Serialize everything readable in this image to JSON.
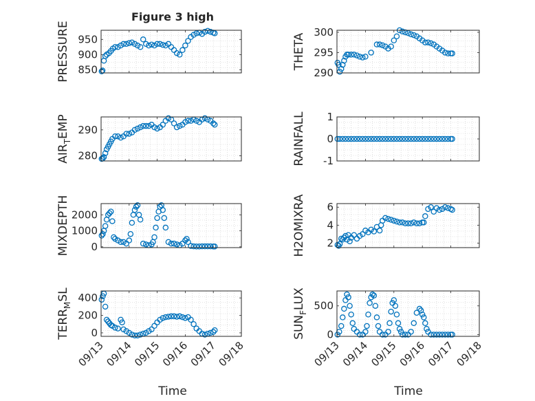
{
  "figure": {
    "title": "Figure 3 high",
    "xlabel": "Time"
  },
  "colors": {
    "marker": "#0072BD",
    "axis": "#262626",
    "grid": "#c8c8c8"
  },
  "chart_data": [
    {
      "id": "pressure",
      "type": "scatter",
      "ylabel": "PRESSURE",
      "ylim": [
        840,
        980
      ],
      "yticks": [
        850,
        900,
        950
      ],
      "grid": true,
      "xlim": [
        0,
        5
      ],
      "xticks": [
        "09/13",
        "09/14",
        "09/15",
        "09/16",
        "09/17",
        "09/18"
      ],
      "x": [
        0.02,
        0.05,
        0.1,
        0.15,
        0.2,
        0.28,
        0.35,
        0.42,
        0.5,
        0.6,
        0.7,
        0.8,
        0.9,
        1.0,
        1.1,
        1.2,
        1.3,
        1.4,
        1.5,
        1.6,
        1.7,
        1.8,
        1.9,
        2.0,
        2.1,
        2.2,
        2.3,
        2.4,
        2.5,
        2.6,
        2.7,
        2.8,
        2.9,
        3.0,
        3.1,
        3.2,
        3.3,
        3.4,
        3.5,
        3.6,
        3.7,
        3.8,
        3.9,
        4.0,
        4.05
      ],
      "y": [
        845,
        848,
        880,
        895,
        900,
        905,
        912,
        920,
        925,
        925,
        930,
        935,
        935,
        938,
        940,
        935,
        930,
        925,
        950,
        935,
        930,
        933,
        930,
        935,
        935,
        932,
        930,
        935,
        925,
        915,
        905,
        900,
        915,
        930,
        945,
        958,
        965,
        970,
        972,
        968,
        975,
        978,
        975,
        972,
        970
      ]
    },
    {
      "id": "theta",
      "type": "scatter",
      "ylabel": "THETA",
      "ylim": [
        290,
        300.5
      ],
      "yticks": [
        290,
        295,
        300
      ],
      "grid": true,
      "xlim": [
        0,
        5
      ],
      "xticks": [
        "09/13",
        "09/14",
        "09/15",
        "09/16",
        "09/17",
        "09/18"
      ],
      "x": [
        0.02,
        0.06,
        0.1,
        0.15,
        0.2,
        0.25,
        0.3,
        0.35,
        0.4,
        0.5,
        0.6,
        0.7,
        0.8,
        0.9,
        1.0,
        1.2,
        1.4,
        1.5,
        1.6,
        1.7,
        1.8,
        1.9,
        2.0,
        2.1,
        2.2,
        2.3,
        2.4,
        2.5,
        2.6,
        2.7,
        2.8,
        2.9,
        3.0,
        3.1,
        3.2,
        3.3,
        3.4,
        3.5,
        3.6,
        3.7,
        3.8,
        3.9,
        4.0,
        4.05
      ],
      "y": [
        292.5,
        292,
        290.3,
        291,
        292,
        293,
        294,
        294.5,
        294.5,
        294.5,
        294.5,
        294.3,
        294,
        293.8,
        294,
        295,
        297,
        297,
        296.8,
        296.5,
        296,
        296.5,
        298,
        299,
        300.5,
        300.2,
        300,
        299.8,
        299.5,
        299.3,
        299,
        298.5,
        298,
        297.5,
        297.5,
        297.3,
        297,
        296.5,
        296,
        295.5,
        295,
        294.8,
        294.8,
        294.8
      ]
    },
    {
      "id": "air_temp",
      "type": "scatter",
      "ylabel": "AIR_TEMP",
      "ylim": [
        278,
        295
      ],
      "yticks": [
        280,
        290
      ],
      "grid": true,
      "xlim": [
        0,
        5
      ],
      "xticks": [
        "09/13",
        "09/14",
        "09/15",
        "09/16",
        "09/17",
        "09/18"
      ],
      "x": [
        0.02,
        0.06,
        0.1,
        0.15,
        0.2,
        0.25,
        0.3,
        0.35,
        0.4,
        0.5,
        0.6,
        0.7,
        0.8,
        0.9,
        1.0,
        1.1,
        1.2,
        1.3,
        1.4,
        1.5,
        1.6,
        1.7,
        1.8,
        1.9,
        2.0,
        2.1,
        2.2,
        2.3,
        2.4,
        2.5,
        2.6,
        2.7,
        2.8,
        2.9,
        3.0,
        3.1,
        3.2,
        3.3,
        3.4,
        3.5,
        3.6,
        3.7,
        3.8,
        3.9,
        4.0,
        4.05
      ],
      "y": [
        278.8,
        279,
        279.5,
        281,
        282.5,
        283.5,
        284.5,
        285.5,
        286.5,
        287.5,
        287.5,
        287,
        287.5,
        288.5,
        288.5,
        289,
        290,
        290.5,
        291,
        291.5,
        291.5,
        291.5,
        292,
        291,
        290.5,
        291,
        292,
        293.5,
        294.5,
        294,
        292.5,
        291,
        291.5,
        292,
        293,
        293.5,
        293.5,
        294,
        293.5,
        293,
        294,
        294.5,
        294,
        293.5,
        292.5,
        292
      ]
    },
    {
      "id": "rainfall",
      "type": "scatter",
      "ylabel": "RAINFALL",
      "ylim": [
        -1,
        1
      ],
      "yticks": [
        -1,
        0,
        1
      ],
      "grid": true,
      "xlim": [
        0,
        5
      ],
      "xticks": [
        "09/13",
        "09/14",
        "09/15",
        "09/16",
        "09/17",
        "09/18"
      ],
      "x": [
        0.02,
        0.1,
        0.2,
        0.3,
        0.4,
        0.5,
        0.6,
        0.7,
        0.8,
        0.9,
        1.0,
        1.1,
        1.2,
        1.3,
        1.4,
        1.5,
        1.6,
        1.7,
        1.8,
        1.9,
        2.0,
        2.1,
        2.2,
        2.3,
        2.4,
        2.5,
        2.6,
        2.7,
        2.8,
        2.9,
        3.0,
        3.1,
        3.2,
        3.3,
        3.4,
        3.5,
        3.6,
        3.7,
        3.8,
        3.9,
        4.0,
        4.05
      ],
      "y": [
        0,
        0,
        0,
        0,
        0,
        0,
        0,
        0,
        0,
        0,
        0,
        0,
        0,
        0,
        0,
        0,
        0,
        0,
        0,
        0,
        0,
        0,
        0,
        0,
        0,
        0,
        0,
        0,
        0,
        0,
        0,
        0,
        0,
        0,
        0,
        0,
        0,
        0,
        0,
        0,
        0,
        0
      ]
    },
    {
      "id": "mixdepth",
      "type": "scatter",
      "ylabel": "MIXDEPTH",
      "ylim": [
        -50,
        2700
      ],
      "yticks": [
        0,
        1000,
        2000
      ],
      "grid": true,
      "xlim": [
        0,
        5
      ],
      "xticks": [
        "09/13",
        "09/14",
        "09/15",
        "09/16",
        "09/17",
        "09/18"
      ],
      "x": [
        0.02,
        0.06,
        0.1,
        0.15,
        0.2,
        0.25,
        0.3,
        0.35,
        0.4,
        0.45,
        0.5,
        0.6,
        0.7,
        0.8,
        0.9,
        1.0,
        1.05,
        1.1,
        1.15,
        1.2,
        1.25,
        1.3,
        1.35,
        1.4,
        1.5,
        1.6,
        1.7,
        1.8,
        1.85,
        1.9,
        1.95,
        2.0,
        2.05,
        2.1,
        2.15,
        2.2,
        2.25,
        2.3,
        2.4,
        2.5,
        2.6,
        2.7,
        2.8,
        2.9,
        3.0,
        3.05,
        3.1,
        3.2,
        3.3,
        3.4,
        3.5,
        3.6,
        3.7,
        3.8,
        3.9,
        4.0,
        4.05
      ],
      "y": [
        700,
        800,
        1000,
        1300,
        1700,
        2000,
        2100,
        2200,
        1600,
        600,
        500,
        400,
        300,
        300,
        200,
        400,
        800,
        1500,
        2000,
        2300,
        2500,
        2600,
        2000,
        1700,
        200,
        150,
        100,
        150,
        300,
        600,
        1200,
        1800,
        2200,
        2500,
        2600,
        2300,
        1800,
        1200,
        300,
        200,
        200,
        150,
        100,
        200,
        400,
        500,
        300,
        50,
        30,
        20,
        20,
        30,
        30,
        30,
        30,
        20,
        20
      ]
    },
    {
      "id": "h2omixra",
      "type": "scatter",
      "ylabel": "H2OMIXRA",
      "ylim": [
        1.5,
        6.4
      ],
      "yticks": [
        2,
        4,
        6
      ],
      "grid": true,
      "xlim": [
        0,
        5
      ],
      "xticks": [
        "09/13",
        "09/14",
        "09/15",
        "09/16",
        "09/17",
        "09/18"
      ],
      "x": [
        0.02,
        0.06,
        0.1,
        0.15,
        0.2,
        0.25,
        0.3,
        0.35,
        0.4,
        0.45,
        0.5,
        0.6,
        0.7,
        0.8,
        0.9,
        1.0,
        1.1,
        1.2,
        1.3,
        1.4,
        1.5,
        1.55,
        1.6,
        1.7,
        1.8,
        1.9,
        2.0,
        2.1,
        2.2,
        2.3,
        2.4,
        2.5,
        2.6,
        2.7,
        2.8,
        2.9,
        3.0,
        3.05,
        3.1,
        3.2,
        3.3,
        3.4,
        3.5,
        3.6,
        3.7,
        3.8,
        3.9,
        4.0,
        4.05
      ],
      "y": [
        1.8,
        1.7,
        1.9,
        2.5,
        2.4,
        2.6,
        2.8,
        2.4,
        2.9,
        2.2,
        2.6,
        2.9,
        2.5,
        2.8,
        3.0,
        3.4,
        3.2,
        3.5,
        3.3,
        3.8,
        3.4,
        4.0,
        4.5,
        4.8,
        4.7,
        4.6,
        4.5,
        4.4,
        4.3,
        4.3,
        4.2,
        4.2,
        4.2,
        4.3,
        4.2,
        4.2,
        4.3,
        4.3,
        5.0,
        5.8,
        6.0,
        5.5,
        5.9,
        5.7,
        5.8,
        6.0,
        5.9,
        5.8,
        5.7
      ]
    },
    {
      "id": "terr_msl",
      "type": "scatter",
      "ylabel": "TERR_MSL",
      "ylim": [
        -40,
        480
      ],
      "yticks": [
        0,
        200,
        400
      ],
      "grid": true,
      "xlim": [
        0,
        5
      ],
      "xticks": [
        "09/13",
        "09/14",
        "09/15",
        "09/16",
        "09/17",
        "09/18"
      ],
      "x": [
        0.02,
        0.06,
        0.1,
        0.15,
        0.2,
        0.25,
        0.3,
        0.35,
        0.4,
        0.5,
        0.6,
        0.7,
        0.75,
        0.8,
        0.9,
        1.0,
        1.1,
        1.2,
        1.3,
        1.4,
        1.5,
        1.6,
        1.7,
        1.8,
        1.9,
        2.0,
        2.1,
        2.2,
        2.3,
        2.4,
        2.5,
        2.6,
        2.7,
        2.8,
        2.9,
        3.0,
        3.1,
        3.2,
        3.3,
        3.4,
        3.5,
        3.6,
        3.7,
        3.8,
        3.9,
        4.0,
        4.05
      ],
      "y": [
        380,
        420,
        450,
        300,
        150,
        130,
        110,
        90,
        80,
        60,
        50,
        150,
        120,
        40,
        20,
        0,
        -20,
        -30,
        -30,
        -20,
        -10,
        0,
        20,
        40,
        80,
        120,
        150,
        170,
        180,
        185,
        190,
        190,
        185,
        190,
        180,
        170,
        180,
        150,
        100,
        50,
        20,
        -10,
        -20,
        -10,
        0,
        10,
        30
      ]
    },
    {
      "id": "sun_flux",
      "type": "scatter",
      "ylabel": "SUN_FLUX",
      "ylim": [
        -30,
        760
      ],
      "yticks": [
        0,
        500
      ],
      "grid": true,
      "xlim": [
        0,
        5
      ],
      "xticks": [
        "09/13",
        "09/14",
        "09/15",
        "09/16",
        "09/17",
        "09/18"
      ],
      "x": [
        0.02,
        0.08,
        0.15,
        0.2,
        0.25,
        0.3,
        0.35,
        0.4,
        0.45,
        0.5,
        0.55,
        0.6,
        0.7,
        0.8,
        0.9,
        1.0,
        1.05,
        1.1,
        1.15,
        1.2,
        1.25,
        1.3,
        1.35,
        1.4,
        1.45,
        1.5,
        1.6,
        1.7,
        1.8,
        1.85,
        1.9,
        1.95,
        2.0,
        2.05,
        2.1,
        2.15,
        2.2,
        2.25,
        2.3,
        2.4,
        2.5,
        2.6,
        2.7,
        2.8,
        2.9,
        2.95,
        3.0,
        3.05,
        3.1,
        3.15,
        3.2,
        3.3,
        3.4,
        3.5,
        3.6,
        3.7,
        3.8,
        3.9,
        4.0,
        4.05
      ],
      "y": [
        0,
        50,
        150,
        300,
        450,
        600,
        700,
        650,
        500,
        350,
        200,
        100,
        50,
        0,
        0,
        50,
        150,
        350,
        550,
        650,
        700,
        680,
        500,
        300,
        150,
        50,
        0,
        0,
        50,
        200,
        400,
        550,
        600,
        500,
        350,
        200,
        100,
        50,
        0,
        0,
        0,
        50,
        200,
        380,
        450,
        420,
        350,
        300,
        200,
        100,
        50,
        0,
        0,
        0,
        0,
        0,
        0,
        0,
        0,
        0
      ]
    }
  ]
}
